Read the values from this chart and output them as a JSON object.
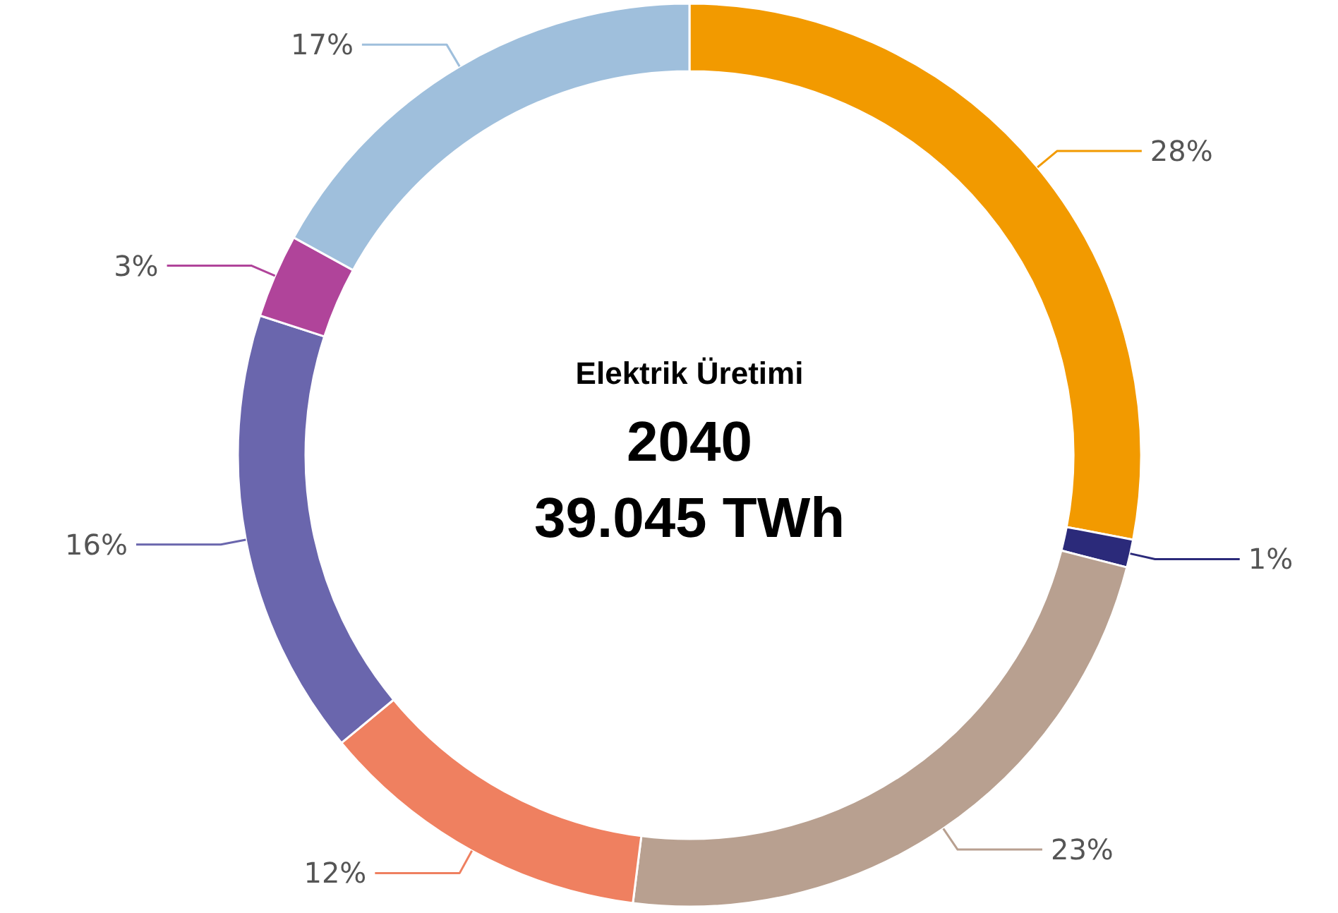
{
  "chart_data": {
    "type": "donut",
    "title": "Elektrik Üretimi",
    "subtitle": "2040",
    "annotations": [
      "39.045 TWh"
    ],
    "categories": [
      null,
      null,
      null,
      null,
      null,
      null,
      null
    ],
    "values": [
      28,
      1,
      23,
      12,
      16,
      3,
      17
    ],
    "colors": [
      "#f29a00",
      "#2b2a7a",
      "#b8a090",
      "#ef8060",
      "#6a66ad",
      "#b0449a",
      "#9fbfdc"
    ],
    "value_labels": [
      "28%",
      "1%",
      "23%",
      "12%",
      "16%",
      "3%",
      "17%"
    ]
  }
}
